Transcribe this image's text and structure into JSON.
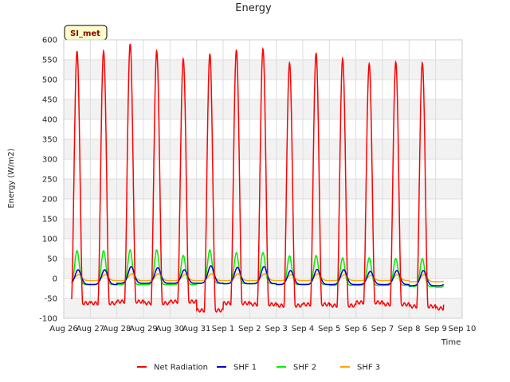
{
  "chart_data": {
    "type": "line",
    "title": "Energy",
    "xlabel": "Time",
    "ylabel": "Energy (W/m2)",
    "badge": "SI_met",
    "ylim": [
      -100,
      600
    ],
    "yticks": [
      -100,
      -50,
      0,
      50,
      100,
      150,
      200,
      250,
      300,
      350,
      400,
      450,
      500,
      550,
      600
    ],
    "xlim": [
      0,
      15
    ],
    "xticks": [
      {
        "pos": 0,
        "label": "Aug 26"
      },
      {
        "pos": 1,
        "label": "Aug 27"
      },
      {
        "pos": 2,
        "label": "Aug 28"
      },
      {
        "pos": 3,
        "label": "Aug 29"
      },
      {
        "pos": 4,
        "label": "Aug 30"
      },
      {
        "pos": 5,
        "label": "Aug 31"
      },
      {
        "pos": 6,
        "label": "Sep 1"
      },
      {
        "pos": 7,
        "label": "Sep 2"
      },
      {
        "pos": 8,
        "label": "Sep 3"
      },
      {
        "pos": 9,
        "label": "Sep 4"
      },
      {
        "pos": 10,
        "label": "Sep 5"
      },
      {
        "pos": 11,
        "label": "Sep 6"
      },
      {
        "pos": 12,
        "label": "Sep 7"
      },
      {
        "pos": 13,
        "label": "Sep 8"
      },
      {
        "pos": 14,
        "label": "Sep 9"
      },
      {
        "pos": 15,
        "label": "Sep 10"
      }
    ],
    "x_start": 0.3,
    "x_end": 14.3,
    "series": [
      {
        "name": "Net Radiation",
        "color": "#ff0000",
        "daily_peaks": [
          572,
          590,
          572,
          552,
          565,
          575,
          577,
          542,
          567,
          553,
          540,
          544,
          542,
          537
        ],
        "night_min": [
          -62,
          -58,
          -62,
          -58,
          -80,
          -62,
          -65,
          -68,
          -65,
          -68,
          -60,
          -65,
          -70,
          -75
        ]
      },
      {
        "name": "SHF 1",
        "color": "#0000cc",
        "daily_peaks": [
          22,
          30,
          27,
          22,
          32,
          28,
          30,
          20,
          23,
          22,
          18,
          20,
          20,
          15
        ],
        "night_min": [
          -15,
          -12,
          -12,
          -12,
          -12,
          -13,
          -13,
          -15,
          -15,
          -15,
          -15,
          -15,
          -18,
          -18
        ]
      },
      {
        "name": "SHF 2",
        "color": "#00ee00",
        "daily_peaks": [
          70,
          72,
          72,
          58,
          72,
          65,
          65,
          57,
          58,
          52,
          52,
          50,
          50,
          33
        ],
        "night_min": [
          -15,
          -15,
          -15,
          -15,
          -12,
          -13,
          -13,
          -15,
          -15,
          -17,
          -17,
          -17,
          -20,
          -22
        ]
      },
      {
        "name": "SHF 3",
        "color": "#ffa500",
        "daily_peaks": [
          10,
          12,
          12,
          10,
          12,
          12,
          12,
          10,
          12,
          10,
          8,
          10,
          10,
          10
        ],
        "night_min": [
          -5,
          -5,
          -5,
          -5,
          -5,
          -5,
          -5,
          -5,
          -5,
          -5,
          -5,
          -5,
          -8,
          -8
        ]
      }
    ],
    "legend_position": "bottom-center"
  }
}
